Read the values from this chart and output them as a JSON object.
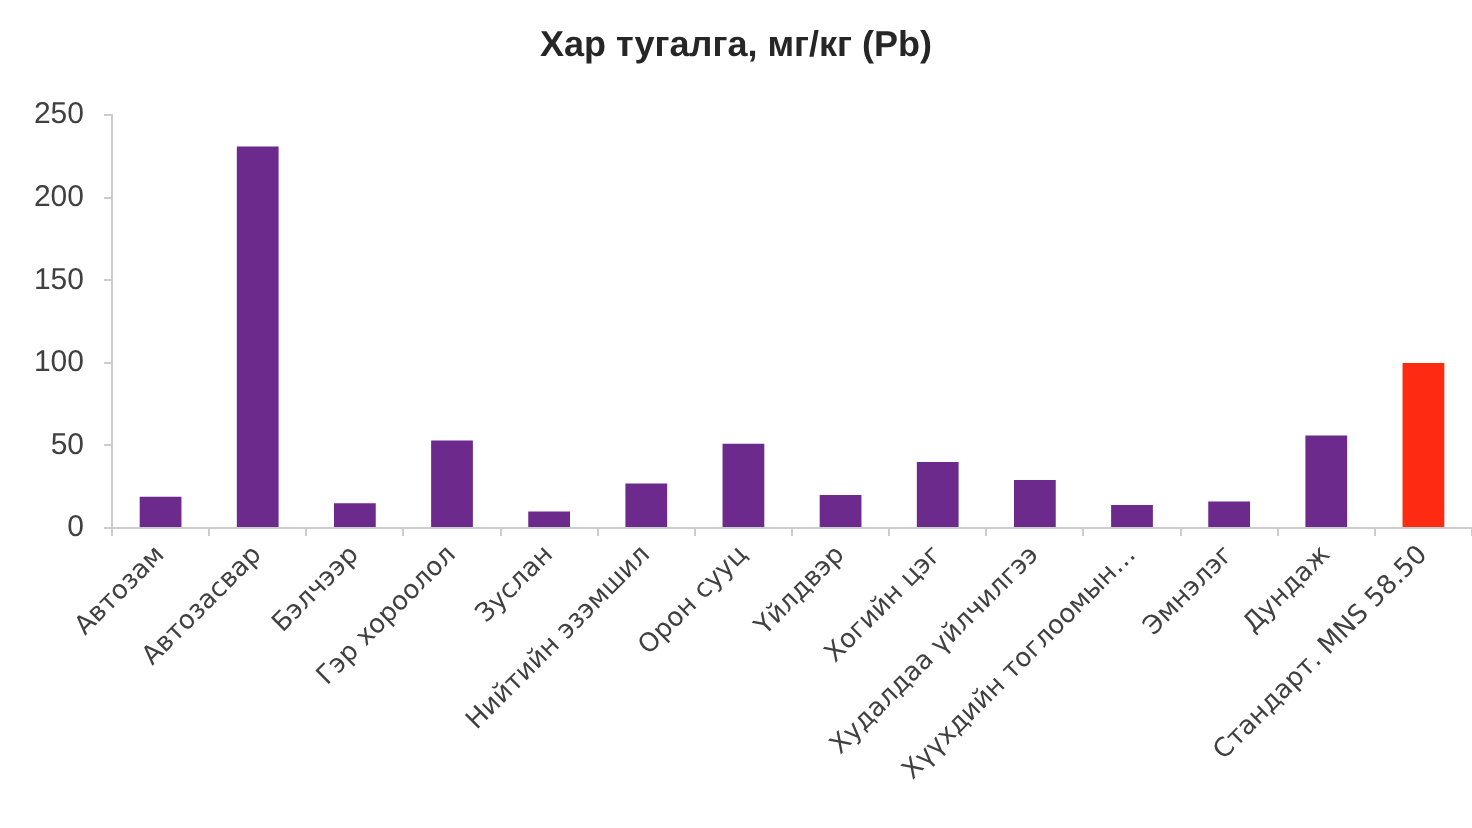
{
  "chart_data": {
    "type": "bar",
    "title": "Хар тугалга, мг/кг (Pb)",
    "categories": [
      "Автозам",
      "Автозасвар",
      "Бэлчээр",
      "Гэр хороолол",
      "Зуслан",
      "Нийтийн эзэмшил",
      "Орон сууц",
      "Үйлдвэр",
      "Хогийн цэг",
      "Худалдаа үйлчилгээ",
      "Хүүхдийн тоглоомын…",
      "Эмнэлэг",
      "Дундаж",
      "Стандарт. MNS 58.50"
    ],
    "values": [
      19,
      231,
      15,
      53,
      10,
      27,
      51,
      20,
      40,
      29,
      14,
      16,
      56,
      100
    ],
    "colors": [
      "#6b2a8c",
      "#6b2a8c",
      "#6b2a8c",
      "#6b2a8c",
      "#6b2a8c",
      "#6b2a8c",
      "#6b2a8c",
      "#6b2a8c",
      "#6b2a8c",
      "#6b2a8c",
      "#6b2a8c",
      "#6b2a8c",
      "#6b2a8c",
      "#ff2a12"
    ],
    "ylim": [
      0,
      250
    ],
    "yticks": [
      0,
      50,
      100,
      150,
      200,
      250
    ]
  }
}
